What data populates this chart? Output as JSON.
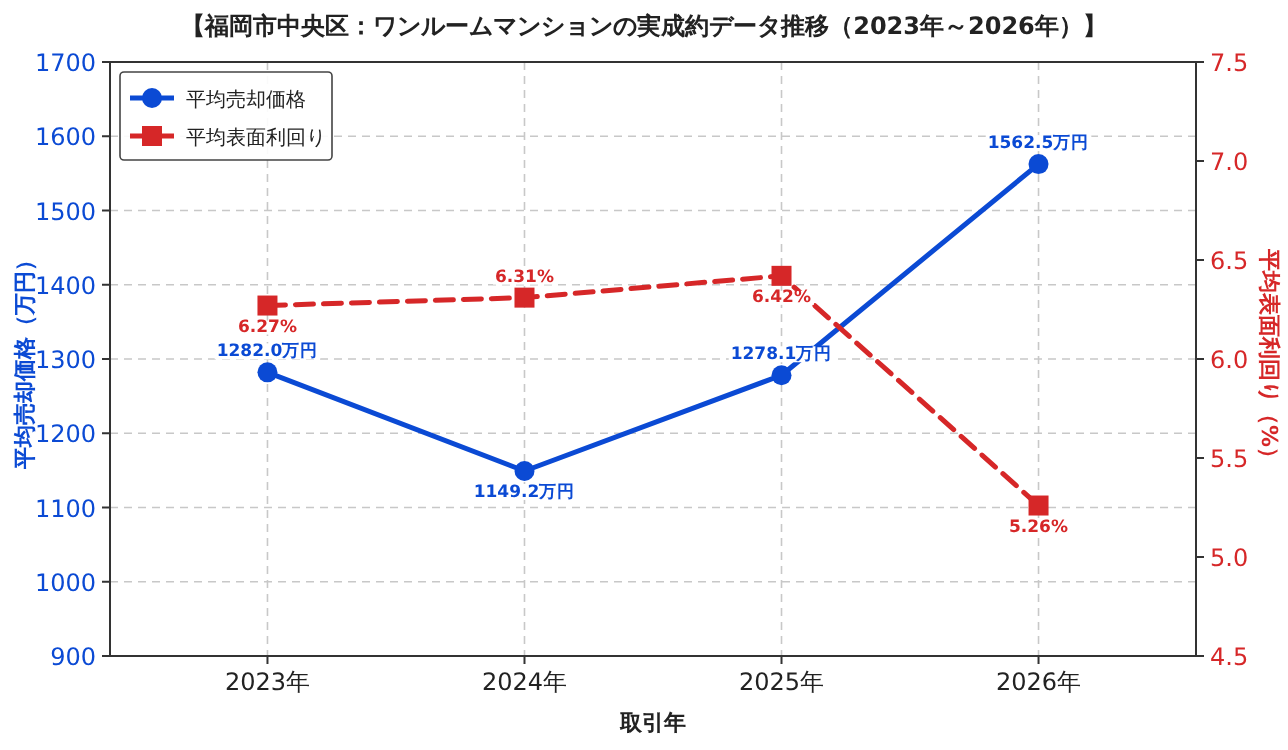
{
  "chart_data": {
    "type": "line",
    "title": "【福岡市中央区：ワンルームマンションの実成約データ推移（2023年～2026年）】",
    "xlabel": "取引年",
    "ylabel": "平均売却価格（万円）",
    "y2label": "平均表面利回り（%）",
    "categories": [
      "2023年",
      "2024年",
      "2025年",
      "2026年"
    ],
    "series": [
      {
        "name": "平均売却価格",
        "color": "#0b4ad4",
        "values": [
          1282.0,
          1149.2,
          1278.1,
          1562.5
        ],
        "value_labels": [
          "1282.0万円",
          "1149.2万円",
          "1278.1万円",
          "1562.5万円"
        ],
        "marker": "circle",
        "line_style": "solid"
      },
      {
        "name": "平均表面利回り",
        "color": "#d62728",
        "axis": "y2",
        "values": [
          6.27,
          6.31,
          6.42,
          5.26
        ],
        "value_labels": [
          "6.27%",
          "6.31%",
          "6.42%",
          "5.26%"
        ],
        "marker": "square",
        "line_style": "dashed"
      }
    ],
    "ylim": [
      900,
      1700
    ],
    "yticks": [
      900,
      1000,
      1100,
      1200,
      1300,
      1400,
      1500,
      1600,
      1700
    ],
    "y2lim": [
      4.5,
      7.5
    ],
    "y2ticks": [
      4.5,
      {
        "value": 5,
        "label": "5.0"
      },
      5.5,
      {
        "value": 6,
        "label": "6.0"
      },
      6.5,
      {
        "value": 7,
        "label": "7.0"
      },
      7.5
    ],
    "grid": true,
    "legend": "top left"
  }
}
